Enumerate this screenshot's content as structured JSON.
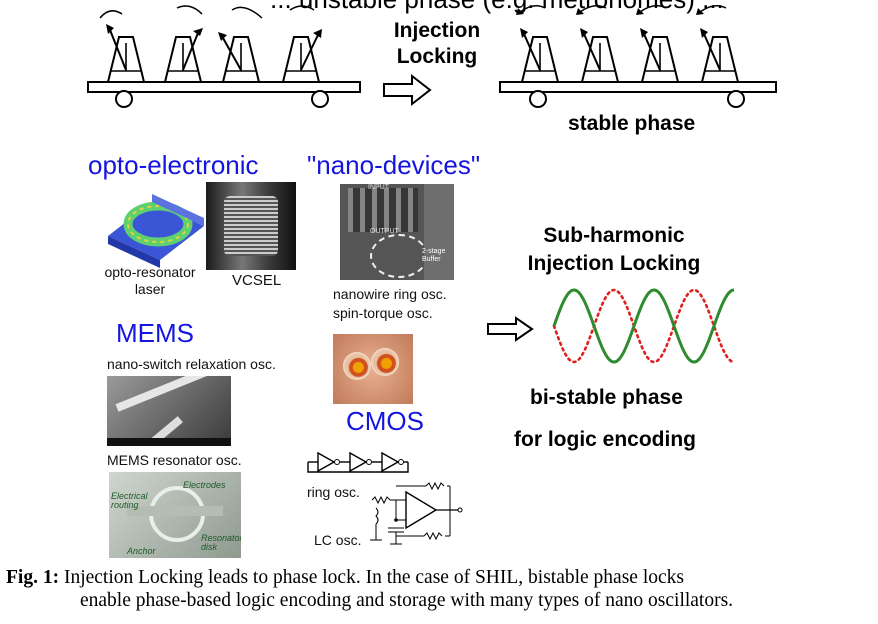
{
  "figure": {
    "top_heading": "... unstable phase (e.g. metronomes) ...",
    "injection_label_line1": "Injection",
    "injection_label_line2": "Locking",
    "stable_phase_label": "stable phase",
    "categories": {
      "opto": "opto-electronic",
      "nano": "\"nano-devices\"",
      "mems": "MEMS",
      "cmos": "CMOS"
    },
    "device_labels": {
      "opto_resonator": "opto-resonator\nlaser",
      "vcsel": "VCSEL",
      "nanowire": "nanowire ring osc.",
      "spin_torque": "spin-torque osc.",
      "nano_switch": "nano-switch relaxation osc.",
      "mems_resonator": "MEMS resonator osc.",
      "ring_osc": "ring osc.",
      "lc_osc": "LC osc."
    },
    "image_text": {
      "input": "INPUT",
      "output": "OUTPUT",
      "buffer": "2-stage\nBuffer",
      "electrical_routing": "Electrical\nrouting",
      "electrodes": "Electrodes",
      "anchor": "Anchor",
      "resonator_disk": "Resonator\ndisk"
    },
    "shil_title_line1": "Sub-harmonic",
    "shil_title_line2": "Injection Locking",
    "bistable_label": "bi-stable phase",
    "logic_label": "for logic encoding",
    "colors": {
      "blue": "#1515e0",
      "wave_green": "#2e8b2e",
      "wave_red": "#e02020"
    }
  },
  "caption": {
    "label": "Fig. 1:",
    "line1": "Injection Locking leads to phase lock. In the case of SHIL, bistable phase locks",
    "line2": "enable phase-based logic encoding and storage with many types of nano oscillators."
  }
}
